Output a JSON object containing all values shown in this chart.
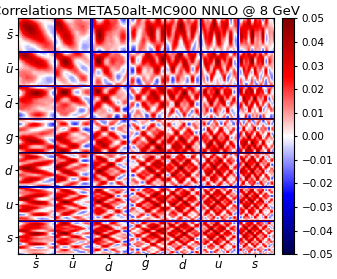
{
  "title": "Correlations META50alt-MC900 NNLO @ 8 GeV",
  "labels": [
    "$\\bar{s}$",
    "$\\bar{u}$",
    "$\\bar{d}$",
    "$g$",
    "$d$",
    "$u$",
    "$s$"
  ],
  "vmin": -0.05,
  "vmax": 0.05,
  "colorbar_ticks": [
    0.05,
    0.04,
    0.03,
    0.02,
    0.01,
    0.0,
    -0.01,
    -0.02,
    -0.03,
    -0.04,
    -0.05
  ],
  "n_per_block": 50,
  "n_blocks": 7,
  "seed": 12345,
  "title_fontsize": 9.5,
  "label_fontsize": 8.5,
  "tick_fontsize": 7.5,
  "figwidth": 3.37,
  "figheight": 2.79,
  "dpi": 100
}
